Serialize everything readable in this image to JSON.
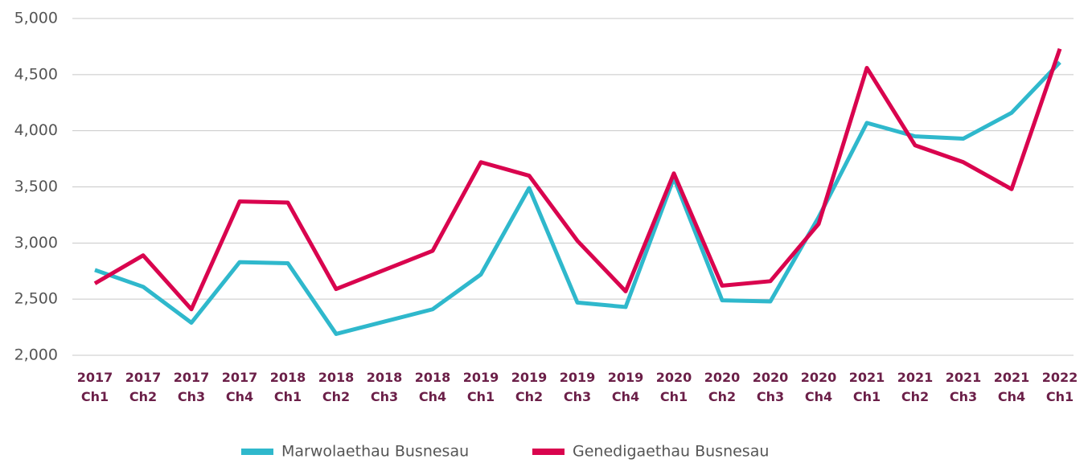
{
  "chart_data": {
    "type": "line",
    "categories": [
      "2017 Ch1",
      "2017 Ch2",
      "2017 Ch3",
      "2017 Ch4",
      "2018 Ch1",
      "2018 Ch2",
      "2018 Ch3",
      "2018 Ch4",
      "2019 Ch1",
      "2019 Ch2",
      "2019 Ch3",
      "2019 Ch4",
      "2020 Ch1",
      "2020 Ch2",
      "2020 Ch3",
      "2020 Ch4",
      "2021 Ch1",
      "2021 Ch2",
      "2021 Ch3",
      "2021 Ch4",
      "2022 Ch1"
    ],
    "series": [
      {
        "name": "Marwolaethau Busnesau",
        "color": "#2fb8cc",
        "values": [
          2760,
          2610,
          2290,
          2830,
          2820,
          2190,
          2300,
          2410,
          2720,
          3490,
          2470,
          2430,
          3580,
          2490,
          2480,
          3230,
          4070,
          3950,
          3930,
          4160,
          4610
        ]
      },
      {
        "name": "Genedigaethau Busnesau",
        "color": "#d9044e",
        "values": [
          2640,
          2890,
          2410,
          3370,
          3360,
          2590,
          2760,
          2930,
          3720,
          3600,
          3020,
          2570,
          3620,
          2620,
          2660,
          3170,
          4560,
          3870,
          3720,
          3480,
          4730
        ]
      }
    ],
    "ylim": [
      2000,
      5000
    ],
    "yticks": [
      {
        "value": 2000,
        "label": "2,000"
      },
      {
        "value": 2500,
        "label": "2,500"
      },
      {
        "value": 3000,
        "label": "3,000"
      },
      {
        "value": 3500,
        "label": "3,500"
      },
      {
        "value": 4000,
        "label": "4,000"
      },
      {
        "value": 4500,
        "label": "4,500"
      },
      {
        "value": 5000,
        "label": "5,000"
      }
    ],
    "grid": true,
    "legend": "bottom"
  }
}
